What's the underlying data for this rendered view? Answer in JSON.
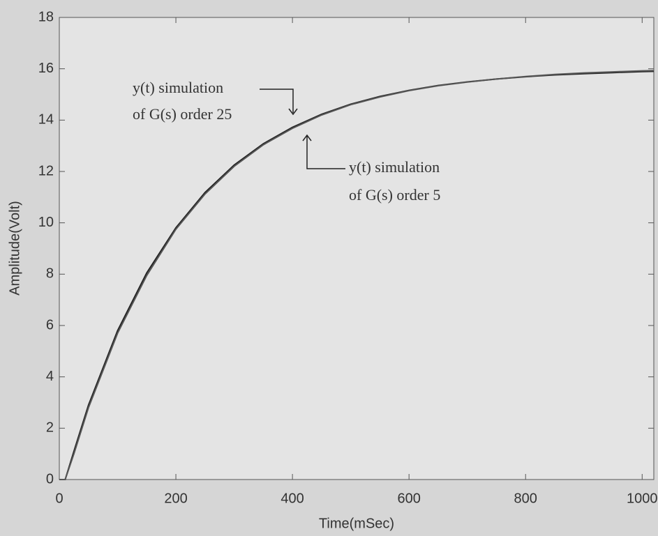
{
  "chart_data": {
    "type": "line",
    "xlabel": "Time(mSec)",
    "ylabel": "Amplitude(Volt)",
    "annotations": [
      "y(t) simulation",
      "of G(s) order 25",
      "y(t) simulation",
      "of G(s) order 5"
    ],
    "x": [
      0,
      10,
      25,
      50,
      100,
      150,
      200,
      250,
      300,
      350,
      400,
      450,
      500,
      550,
      600,
      650,
      700,
      750,
      800,
      850,
      900,
      950,
      1000,
      1020
    ],
    "series": [
      {
        "color": "#222222",
        "values": [
          0,
          0,
          1.1,
          2.9,
          5.8,
          8.05,
          9.81,
          11.18,
          12.25,
          13.08,
          13.72,
          14.23,
          14.62,
          14.92,
          15.16,
          15.35,
          15.49,
          15.6,
          15.69,
          15.76,
          15.81,
          15.85,
          15.89,
          15.9
        ]
      },
      {
        "color": "#555555",
        "values": [
          0,
          0,
          1.0,
          2.8,
          5.7,
          7.95,
          9.75,
          11.12,
          12.2,
          13.04,
          13.68,
          14.2,
          14.6,
          14.9,
          15.15,
          15.34,
          15.48,
          15.6,
          15.7,
          15.78,
          15.84,
          15.88,
          15.92,
          15.93
        ]
      }
    ],
    "xlim": [
      0,
      1020
    ],
    "ylim": [
      0,
      18
    ],
    "xticks": [
      0,
      200,
      400,
      600,
      800,
      1000
    ],
    "yticks": [
      0,
      2,
      4,
      6,
      8,
      10,
      12,
      14,
      16,
      18
    ]
  }
}
